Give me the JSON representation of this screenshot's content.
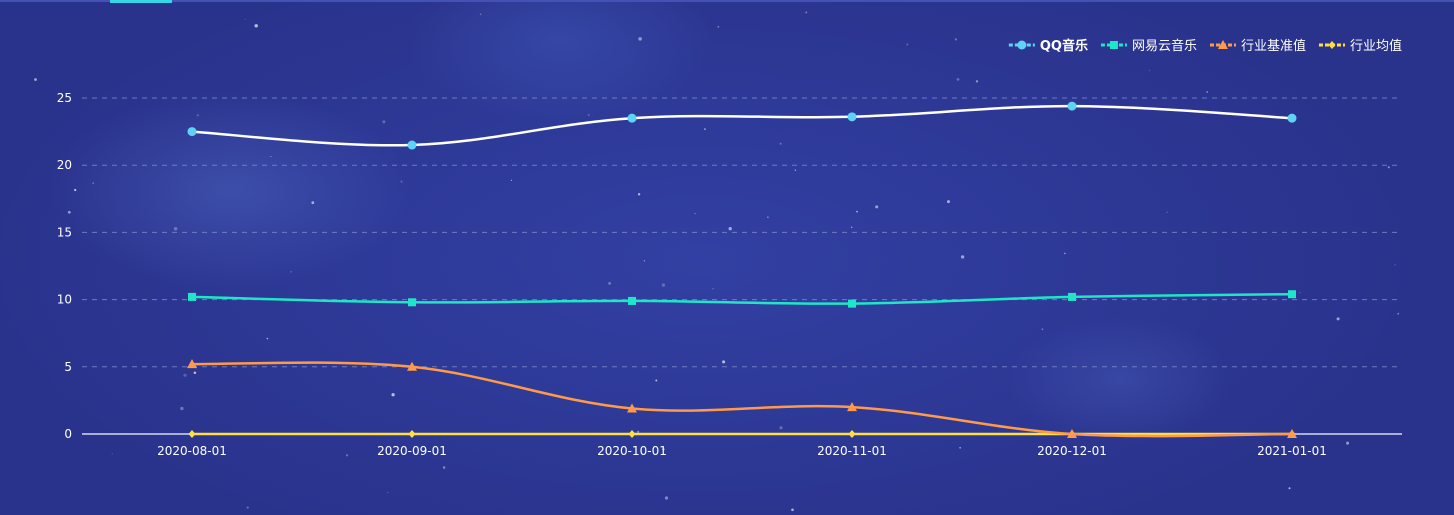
{
  "chart_data": {
    "type": "line",
    "categories": [
      "2020-08-01",
      "2020-09-01",
      "2020-10-01",
      "2020-11-01",
      "2020-12-01",
      "2021-01-01"
    ],
    "ylim": [
      0,
      25
    ],
    "yticks": [
      0,
      5,
      10,
      15,
      20,
      25
    ],
    "grid": "horizontal-dashed",
    "legend_position": "top-right",
    "series": [
      {
        "name": "QQ音乐",
        "values": [
          22.5,
          21.5,
          23.5,
          23.6,
          24.4,
          23.5
        ],
        "color": "#ffffff",
        "marker": "circle",
        "marker_color": "#5fd3f3",
        "legend_color": "#5fd3f3",
        "smooth": true
      },
      {
        "name": "网易云音乐",
        "values": [
          10.2,
          9.8,
          9.9,
          9.7,
          10.2,
          10.4
        ],
        "color": "#1ee6c7",
        "marker": "square",
        "marker_color": "#1ee6c7",
        "legend_color": "#1ee6c7",
        "smooth": true
      },
      {
        "name": "行业基准值",
        "values": [
          5.2,
          5.0,
          1.9,
          2.0,
          0.0,
          0.0
        ],
        "color": "#ff9a4a",
        "marker": "triangle",
        "marker_color": "#ff9a4a",
        "legend_color": "#ff9a4a",
        "smooth": true
      },
      {
        "name": "行业均值",
        "values": [
          0.0,
          0.0,
          0.0,
          0.0,
          0.0,
          0.0
        ],
        "color": "#ffe040",
        "marker": "diamond",
        "marker_color": "#ffe040",
        "legend_color": "#ffe040",
        "smooth": true
      }
    ]
  }
}
